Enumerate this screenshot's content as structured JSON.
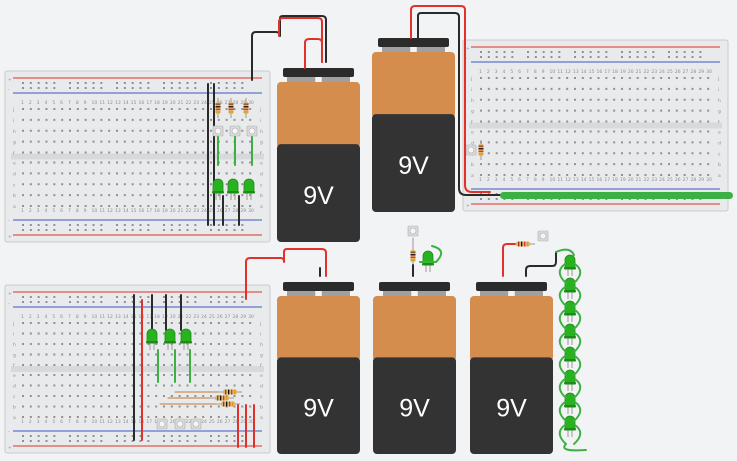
{
  "canvas": {
    "title": "",
    "background": "#f2f3f4"
  },
  "colors": {
    "battery_top": "#2b2b2b",
    "battery_copper": "#d58d4e",
    "battery_body": "#333333",
    "terminal_grey": "#a0a0a0",
    "wire_red": "#e0312b",
    "wire_black": "#2a2a2a",
    "wire_green": "#3cb043",
    "led_green": "#28b21f",
    "breadboard": "#e9eaeb",
    "rail_red": "#e0312b",
    "rail_blue": "#3a58c8"
  },
  "batteries": [
    {
      "id": "battery-1",
      "label": "9V"
    },
    {
      "id": "battery-2",
      "label": "9V"
    },
    {
      "id": "battery-3",
      "label": "9V"
    },
    {
      "id": "battery-4",
      "label": "9V"
    },
    {
      "id": "battery-5",
      "label": "9V"
    }
  ],
  "breadboards": [
    {
      "id": "breadboard-top-left",
      "row_letters_top": [
        "j",
        "i",
        "h",
        "g",
        "f"
      ],
      "row_letters_bottom": [
        "e",
        "d",
        "c",
        "b",
        "a"
      ]
    },
    {
      "id": "breadboard-top-right",
      "row_letters_top": [
        "j",
        "i",
        "h",
        "g",
        "f"
      ],
      "row_letters_bottom": [
        "e",
        "d",
        "c",
        "b",
        "a"
      ]
    },
    {
      "id": "breadboard-bottom-left",
      "row_letters_top": [
        "j",
        "i",
        "h",
        "g",
        "f"
      ],
      "row_letters_bottom": [
        "e",
        "d",
        "c",
        "b",
        "a"
      ]
    }
  ],
  "column_numbers": [
    "1",
    "2",
    "3",
    "4",
    "5",
    "6",
    "7",
    "8",
    "9",
    "10",
    "11",
    "12",
    "13",
    "14",
    "15",
    "16",
    "17",
    "18",
    "19",
    "20",
    "21",
    "22",
    "23",
    "24",
    "25",
    "26",
    "27",
    "28",
    "29",
    "30"
  ],
  "rail_signs": {
    "plus": "+",
    "minus": "-"
  },
  "components": {
    "leds_top_left": 3,
    "leds_bottom_left": 3,
    "leds_chain": 8,
    "leds_single": 1,
    "resistors_top_left": 3,
    "resistors_bottom_left": 3
  }
}
